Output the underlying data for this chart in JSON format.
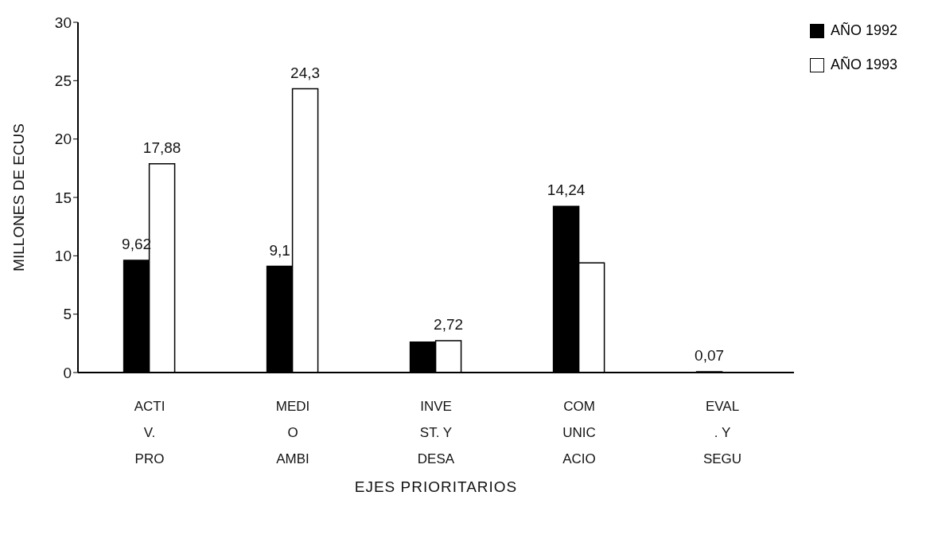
{
  "chart_data": {
    "type": "bar",
    "xlabel": "EJES PRIORITARIOS",
    "ylabel": "MILLONES DE ECUS",
    "categories": [
      "ACTI\nV.\nPRO",
      "MEDI\nO\nAMBI",
      "INVE\nST. Y\nDESA",
      "COM\nUNIC\nACIO",
      "EVAL\n. Y\nSEGU"
    ],
    "series": [
      {
        "name": "AÑO 1992",
        "color": "#000000",
        "values": [
          9.62,
          9.1,
          2.6,
          14.24,
          0.07
        ],
        "value_labels": [
          "9,62",
          "9,1",
          null,
          "14,24",
          "0,07"
        ]
      },
      {
        "name": "AÑO 1993",
        "color": "#ffffff",
        "values": [
          17.88,
          24.3,
          2.72,
          9.4,
          null
        ],
        "value_labels": [
          "17,88",
          "24,3",
          "2,72",
          null,
          null
        ]
      }
    ],
    "ylim": [
      0,
      30
    ],
    "yticks": [
      0,
      5,
      10,
      15,
      20,
      25,
      30
    ],
    "grid": false,
    "legend": "top right"
  }
}
